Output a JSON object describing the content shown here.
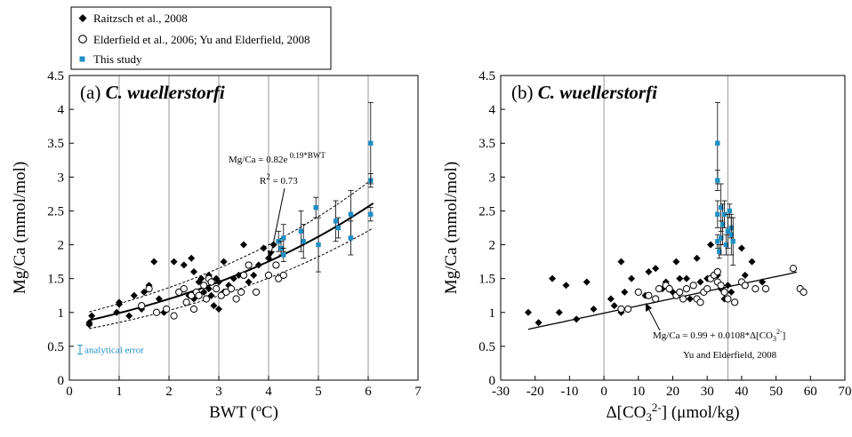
{
  "legend": {
    "items": [
      {
        "label": "Raitzsch et al., 2008",
        "marker": "diamond",
        "color": "#000000"
      },
      {
        "label": "Elderfield et al., 2006; Yu and Elderfield, 2008",
        "marker": "open-circle",
        "color": "#000000"
      },
      {
        "label": "This study",
        "marker": "square",
        "color": "#1f8fc4"
      }
    ]
  },
  "chart_data": [
    {
      "panel_label": "(a)",
      "species": "C. wuellerstorfi",
      "type": "scatter",
      "xlabel": "BWT (ºC)",
      "ylabel": "Mg/Ca (mmol/mol)",
      "xlim": [
        0,
        7
      ],
      "ylim": [
        0,
        4.5
      ],
      "xticks": [
        0,
        1,
        2,
        3,
        4,
        5,
        6,
        7
      ],
      "yticks": [
        0,
        0.5,
        1,
        1.5,
        2,
        2.5,
        3,
        3.5,
        4,
        4.5
      ],
      "ytick_labels": [
        "0",
        "0.5",
        "1",
        "1.5",
        "2",
        "2.5",
        "3",
        "3.5",
        "4",
        "4.5"
      ],
      "vertical_gridlines": [
        1,
        2,
        3,
        4,
        5,
        6
      ],
      "equation": {
        "prefix": "Mg/Ca = 0.82e",
        "exponent": "0.19*BWT",
        "r2_base": "R",
        "r2_exp": "2",
        "r2_rest": " = 0.73"
      },
      "fit": {
        "a": 0.82,
        "b": 0.19,
        "x_range": [
          0.4,
          6.1
        ],
        "band_factor": 0.14
      },
      "analytical_error_label": "analytical error",
      "series": [
        {
          "name": "Raitzsch et al., 2008",
          "marker": "diamond",
          "points": [
            [
              0.4,
              0.85
            ],
            [
              0.45,
              0.95
            ],
            [
              0.4,
              0.82
            ],
            [
              0.95,
              1.0
            ],
            [
              1.0,
              1.15
            ],
            [
              1.0,
              1.12
            ],
            [
              1.2,
              0.95
            ],
            [
              1.3,
              1.25
            ],
            [
              1.45,
              1.05
            ],
            [
              1.5,
              1.3
            ],
            [
              1.6,
              1.4
            ],
            [
              1.7,
              1.75
            ],
            [
              1.8,
              1.2
            ],
            [
              1.9,
              1.0
            ],
            [
              2.1,
              1.75
            ],
            [
              2.2,
              1.3
            ],
            [
              2.3,
              1.7
            ],
            [
              2.4,
              1.25
            ],
            [
              2.45,
              1.8
            ],
            [
              2.5,
              1.6
            ],
            [
              2.5,
              1.2
            ],
            [
              2.6,
              1.45
            ],
            [
              2.65,
              1.5
            ],
            [
              2.7,
              1.3
            ],
            [
              2.8,
              1.35
            ],
            [
              2.8,
              1.55
            ],
            [
              2.85,
              1.25
            ],
            [
              2.9,
              1.1
            ],
            [
              2.95,
              1.5
            ],
            [
              3.0,
              1.45
            ],
            [
              3.0,
              1.05
            ],
            [
              3.1,
              1.75
            ],
            [
              3.1,
              1.3
            ],
            [
              3.2,
              1.4
            ],
            [
              3.3,
              1.5
            ],
            [
              3.4,
              1.55
            ],
            [
              3.5,
              2.0
            ],
            [
              3.6,
              1.45
            ],
            [
              3.7,
              1.55
            ],
            [
              3.8,
              1.7
            ],
            [
              3.9,
              1.95
            ],
            [
              4.0,
              1.8
            ],
            [
              4.1,
              2.0
            ]
          ]
        },
        {
          "name": "Elderfield et al., 2006; Yu and Elderfield, 2008",
          "marker": "open-circle",
          "points": [
            [
              1.45,
              1.1
            ],
            [
              1.6,
              1.35
            ],
            [
              1.75,
              1.0
            ],
            [
              1.95,
              1.05
            ],
            [
              2.1,
              0.95
            ],
            [
              2.2,
              1.3
            ],
            [
              2.3,
              1.35
            ],
            [
              2.35,
              1.15
            ],
            [
              2.45,
              1.25
            ],
            [
              2.5,
              1.05
            ],
            [
              2.55,
              1.3
            ],
            [
              2.6,
              1.25
            ],
            [
              2.7,
              1.4
            ],
            [
              2.75,
              1.2
            ],
            [
              2.8,
              1.5
            ],
            [
              2.85,
              1.45
            ],
            [
              2.95,
              1.35
            ],
            [
              3.05,
              1.25
            ],
            [
              3.15,
              1.3
            ],
            [
              3.25,
              1.35
            ],
            [
              3.35,
              1.2
            ],
            [
              3.45,
              1.3
            ],
            [
              3.5,
              1.55
            ],
            [
              3.6,
              1.7
            ],
            [
              3.75,
              1.3
            ],
            [
              4.0,
              1.55
            ],
            [
              4.15,
              1.7
            ],
            [
              4.2,
              1.5
            ],
            [
              4.3,
              1.55
            ]
          ]
        },
        {
          "name": "This study",
          "marker": "square",
          "points": [
            [
              4.2,
              2.05
            ],
            [
              4.25,
              1.95
            ],
            [
              4.3,
              2.1
            ],
            [
              4.3,
              1.85
            ],
            [
              4.65,
              2.2
            ],
            [
              4.7,
              2.05
            ],
            [
              4.95,
              2.55
            ],
            [
              5.0,
              2.0
            ],
            [
              5.35,
              2.35
            ],
            [
              5.4,
              2.25
            ],
            [
              5.65,
              2.45
            ],
            [
              5.65,
              2.1
            ],
            [
              6.05,
              2.95
            ],
            [
              6.05,
              2.45
            ],
            [
              6.05,
              3.5
            ]
          ],
          "errors": [
            0.15,
            0.1,
            0.2,
            0.1,
            0.3,
            0.25,
            0.15,
            0.4,
            0.3,
            0.15,
            0.35,
            0.25,
            0.1,
            0.1,
            0.6
          ]
        }
      ]
    },
    {
      "panel_label": "(b)",
      "species": "C. wuellerstorfi",
      "type": "scatter",
      "xlabel": "Δ[CO3²⁻] (μmol/kg)",
      "ylabel": "Mg/Ca (mmol/mol)",
      "xlim": [
        -30,
        70
      ],
      "ylim": [
        0,
        4.5
      ],
      "xticks": [
        -30,
        -20,
        -10,
        0,
        10,
        20,
        30,
        40,
        50,
        60,
        70
      ],
      "yticks": [
        0,
        0.5,
        1,
        1.5,
        2,
        2.5,
        3,
        3.5,
        4,
        4.5
      ],
      "ytick_labels": [
        "0",
        "0.5",
        "1",
        "1.5",
        "2",
        "2.5",
        "3",
        "3.5",
        "4",
        "4.5"
      ],
      "vertical_gridlines": [
        0,
        36
      ],
      "equation": {
        "line1": "Mg/Ca = 0.99 + 0.0108*Δ[CO",
        "line1_sub": "3",
        "line1_sup": "2-",
        "line1_end": "]",
        "line2": "Yu and Elderfield, 2008"
      },
      "fit": {
        "a": 0.99,
        "b": 0.0108,
        "x_range": [
          -22,
          56
        ]
      },
      "series": [
        {
          "name": "Raitzsch et al., 2008",
          "marker": "diamond",
          "points": [
            [
              -22,
              1.0
            ],
            [
              -19,
              0.85
            ],
            [
              -15,
              1.5
            ],
            [
              -13,
              1.0
            ],
            [
              -11,
              1.4
            ],
            [
              -8,
              0.9
            ],
            [
              -5,
              1.45
            ],
            [
              -3,
              1.05
            ],
            [
              2,
              1.2
            ],
            [
              3,
              1.1
            ],
            [
              5,
              1.75
            ],
            [
              5,
              1.0
            ],
            [
              6,
              1.3
            ],
            [
              8,
              1.5
            ],
            [
              10,
              1.3
            ],
            [
              12,
              1.25
            ],
            [
              13,
              1.6
            ],
            [
              15,
              1.65
            ],
            [
              17,
              1.35
            ],
            [
              18,
              1.45
            ],
            [
              20,
              1.3
            ],
            [
              21,
              1.75
            ],
            [
              22,
              1.5
            ],
            [
              24,
              1.5
            ],
            [
              25,
              1.2
            ],
            [
              27,
              1.8
            ],
            [
              28,
              1.45
            ],
            [
              29,
              1.3
            ],
            [
              30,
              1.5
            ],
            [
              31,
              2.0
            ],
            [
              33,
              1.55
            ],
            [
              34,
              1.35
            ],
            [
              35,
              1.2
            ],
            [
              36,
              1.4
            ],
            [
              37,
              1.3
            ],
            [
              40,
              1.95
            ],
            [
              41,
              1.55
            ],
            [
              43,
              1.75
            ],
            [
              46,
              1.45
            ]
          ]
        },
        {
          "name": "Elderfield et al., 2006; Yu and Elderfield, 2008",
          "marker": "open-circle",
          "points": [
            [
              5,
              1.05
            ],
            [
              7,
              1.05
            ],
            [
              10,
              1.3
            ],
            [
              13,
              1.25
            ],
            [
              15,
              1.2
            ],
            [
              16,
              1.35
            ],
            [
              18,
              1.4
            ],
            [
              19,
              1.35
            ],
            [
              21,
              1.25
            ],
            [
              22,
              1.3
            ],
            [
              23,
              1.2
            ],
            [
              24,
              1.35
            ],
            [
              26,
              1.4
            ],
            [
              27,
              1.2
            ],
            [
              28,
              1.15
            ],
            [
              29,
              1.3
            ],
            [
              30,
              1.35
            ],
            [
              31,
              1.5
            ],
            [
              32,
              1.55
            ],
            [
              33,
              1.45
            ],
            [
              33,
              1.6
            ],
            [
              34,
              1.4
            ],
            [
              35,
              1.3
            ],
            [
              36,
              1.2
            ],
            [
              38,
              1.15
            ],
            [
              40,
              1.45
            ],
            [
              41,
              1.4
            ],
            [
              44,
              1.35
            ],
            [
              47,
              1.35
            ],
            [
              55,
              1.65
            ],
            [
              57,
              1.35
            ],
            [
              58,
              1.3
            ]
          ]
        },
        {
          "name": "This study",
          "marker": "square",
          "points": [
            [
              33,
              3.5
            ],
            [
              33,
              2.95
            ],
            [
              33,
              2.45
            ],
            [
              33,
              2.05
            ],
            [
              33.5,
              1.9
            ],
            [
              34,
              2.55
            ],
            [
              34,
              2.1
            ],
            [
              34.5,
              2.3
            ],
            [
              35,
              2.45
            ],
            [
              35.5,
              2.0
            ],
            [
              36,
              2.2
            ],
            [
              36.5,
              2.5
            ],
            [
              37,
              2.25
            ],
            [
              37,
              2.15
            ],
            [
              37.5,
              2.05
            ]
          ],
          "errors": [
            0.6,
            0.15,
            0.2,
            0.1,
            0.1,
            0.35,
            0.25,
            0.3,
            0.2,
            0.15,
            0.25,
            0.1,
            0.15,
            0.3,
            0.35
          ]
        }
      ]
    }
  ]
}
